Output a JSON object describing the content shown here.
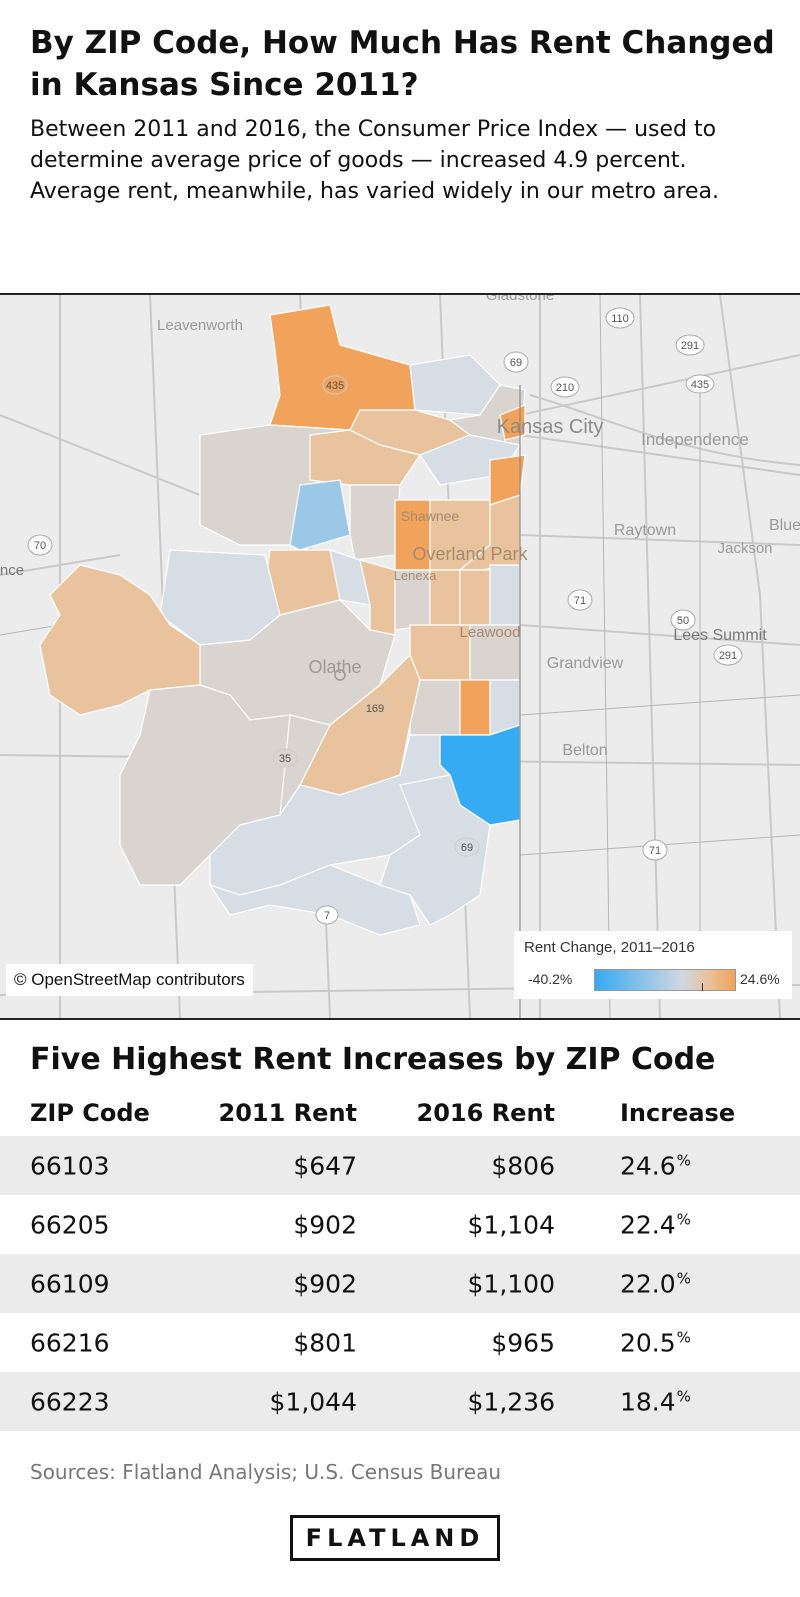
{
  "title": "By ZIP Code, How Much Has Rent Changed in Kansas Since 2011?",
  "subtitle": "Between 2011 and 2016, the Consumer Price Index — used to determine average price of goods — increased 4.9 percent. Average rent, meanwhile, has varied widely in our metro area.",
  "map": {
    "places": [
      "Gladstone",
      "Leavenworth",
      "Kansas City",
      "Independence",
      "Blue",
      "Raytown",
      "Jackson",
      "Shawnee",
      "Overland Park",
      "Lenexa",
      "Leawood",
      "Lees Summit",
      "Olathe",
      "Grandview",
      "Belton",
      "nce"
    ],
    "highways": [
      "110",
      "291",
      "69",
      "210",
      "435",
      "70",
      "71",
      "50",
      "291",
      "169",
      "35",
      "69",
      "71",
      "7",
      "435"
    ],
    "attribution": "© OpenStreetMap contributors",
    "colors": {
      "orange": "#f1a35b",
      "light_orange": "#e8c39e",
      "light_blue": "#cfd8e2",
      "mid_blue": "#9cc8e8",
      "bright_blue": "#36aaf2"
    }
  },
  "legend": {
    "title": "Rent Change, 2011–2016",
    "min": "-40.2%",
    "max": "24.6%",
    "marker_value": 4.9
  },
  "table": {
    "title": "Five Highest Rent Increases by ZIP Code",
    "headers": [
      "ZIP Code",
      "2011 Rent",
      "2016 Rent",
      "Increase"
    ],
    "rows": [
      {
        "zip": "66103",
        "rent_2011": "$647",
        "rent_2016": "$806",
        "increase": "24.6",
        "unit": "%"
      },
      {
        "zip": "66205",
        "rent_2011": "$902",
        "rent_2016": "$1,104",
        "increase": "22.4",
        "unit": "%"
      },
      {
        "zip": "66109",
        "rent_2011": "$902",
        "rent_2016": "$1,100",
        "increase": "22.0",
        "unit": "%"
      },
      {
        "zip": "66216",
        "rent_2011": "$801",
        "rent_2016": "$965",
        "increase": "20.5",
        "unit": "%"
      },
      {
        "zip": "66223",
        "rent_2011": "$1,044",
        "rent_2016": "$1,236",
        "increase": "18.4",
        "unit": "%"
      }
    ]
  },
  "sources": "Sources: Flatland Analysis; U.S. Census Bureau",
  "logo": "FLATLAND"
}
